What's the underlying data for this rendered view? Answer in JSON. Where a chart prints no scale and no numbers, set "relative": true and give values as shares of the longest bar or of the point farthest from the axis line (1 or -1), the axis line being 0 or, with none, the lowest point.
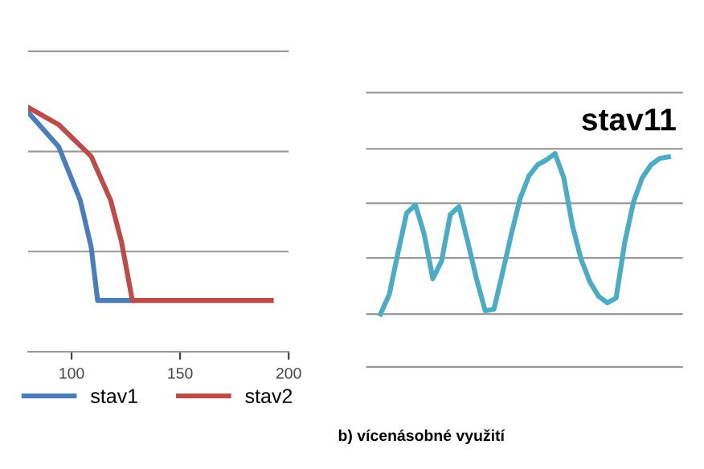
{
  "chart_data": [
    {
      "type": "line",
      "relative": true,
      "xlim": [
        80,
        200
      ],
      "xticks": [
        100,
        150,
        200
      ],
      "legend": "bottom",
      "ref_lines": [
        {
          "axis": "y",
          "value": 0.41,
          "color": "#999999"
        },
        {
          "axis": "y",
          "value": 0.82,
          "color": "#999999"
        },
        {
          "axis": "y",
          "value": 1.23,
          "color": "#999999"
        }
      ],
      "line_style": "solid",
      "marker": "none",
      "series": [
        {
          "name": "stav1",
          "color": "#4a7ebb",
          "x": [
            80,
            94,
            104,
            109,
            112,
            128
          ],
          "values": [
            0.98,
            0.84,
            0.62,
            0.43,
            0.21,
            0.21
          ]
        },
        {
          "name": "stav2",
          "color": "#be4b48",
          "x": [
            80,
            94,
            109,
            118,
            123,
            128,
            192
          ],
          "values": [
            1,
            0.93,
            0.8,
            0.62,
            0.45,
            0.21,
            0.21
          ]
        }
      ]
    },
    {
      "type": "line",
      "relative": true,
      "title": "stav11",
      "ref_lines": [
        {
          "axis": "y",
          "value": -0.33,
          "color": "#999999"
        },
        {
          "axis": "y",
          "value": 0,
          "color": "#999999"
        },
        {
          "axis": "y",
          "value": 0.35,
          "color": "#999999"
        },
        {
          "axis": "y",
          "value": 0.69,
          "color": "#999999"
        },
        {
          "axis": "y",
          "value": 1.03,
          "color": "#999999"
        },
        {
          "axis": "y",
          "value": 1.38,
          "color": "#999999"
        }
      ],
      "line_style": "solid",
      "marker": "none",
      "annotations": [
        "b) vícenásobné využití"
      ],
      "categories": [
        null,
        null,
        null,
        null,
        null,
        null,
        null,
        null,
        null,
        null,
        null,
        null,
        null,
        null,
        null,
        null,
        null,
        null,
        null,
        null,
        null,
        null,
        null,
        null,
        null,
        null,
        null,
        null,
        null,
        null,
        null,
        null,
        null,
        null
      ],
      "series": [
        {
          "color": "#4bacc6",
          "values": [
            0.0,
            0.12,
            0.38,
            0.63,
            0.68,
            0.5,
            0.22,
            0.33,
            0.62,
            0.67,
            0.45,
            0.22,
            0.02,
            0.03,
            0.26,
            0.5,
            0.72,
            0.86,
            0.93,
            0.96,
            1.0,
            0.85,
            0.55,
            0.34,
            0.2,
            0.11,
            0.07,
            0.1,
            0.45,
            0.7,
            0.85,
            0.93,
            0.97,
            0.98
          ]
        }
      ]
    }
  ]
}
